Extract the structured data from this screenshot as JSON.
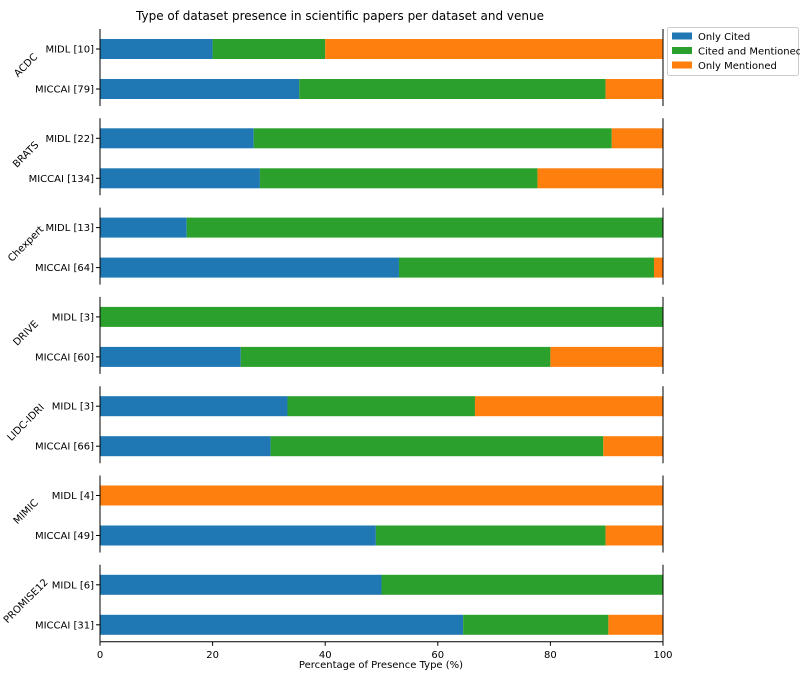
{
  "chart_data": {
    "type": "bar",
    "orientation": "horizontal",
    "stacked": true,
    "title": "Type of dataset presence in scientific papers per dataset and venue",
    "xlabel": "Percentage of Presence Type (%)",
    "xlim": [
      0,
      100
    ],
    "xticks": [
      0,
      20,
      40,
      60,
      80,
      100
    ],
    "grid": false,
    "legend_position": "top-right, outside plot",
    "series": [
      {
        "name": "Only Cited",
        "color": "#1f77b4"
      },
      {
        "name": "Cited and Mentioned",
        "color": "#2ca02c"
      },
      {
        "name": "Only Mentioned",
        "color": "#ff7f0e"
      }
    ],
    "groups": [
      {
        "name": "ACDC",
        "bars": [
          {
            "label": "MIDL [10]",
            "values": [
              20.0,
              20.0,
              60.0
            ]
          },
          {
            "label": "MICCAI [79]",
            "values": [
              35.4,
              54.4,
              10.2
            ]
          }
        ]
      },
      {
        "name": "BRATS",
        "bars": [
          {
            "label": "MIDL [22]",
            "values": [
              27.3,
              63.6,
              9.1
            ]
          },
          {
            "label": "MICCAI [134]",
            "values": [
              28.4,
              49.3,
              22.3
            ]
          }
        ]
      },
      {
        "name": "Chexpert",
        "bars": [
          {
            "label": "MIDL [13]",
            "values": [
              15.4,
              84.6,
              0
            ]
          },
          {
            "label": "MICCAI [64]",
            "values": [
              53.1,
              45.3,
              1.6
            ]
          }
        ]
      },
      {
        "name": "DRIVE",
        "bars": [
          {
            "label": "MIDL [3]",
            "values": [
              0,
              100,
              0
            ]
          },
          {
            "label": "MICCAI [60]",
            "values": [
              25.0,
              55.0,
              20.0
            ]
          }
        ]
      },
      {
        "name": "LIDC-IDRI",
        "bars": [
          {
            "label": "MIDL [3]",
            "values": [
              33.3,
              33.3,
              33.4
            ]
          },
          {
            "label": "MICCAI [66]",
            "values": [
              30.3,
              59.1,
              10.6
            ]
          }
        ]
      },
      {
        "name": "MIMIC",
        "bars": [
          {
            "label": "MIDL [4]",
            "values": [
              0,
              0,
              100
            ]
          },
          {
            "label": "MICCAI [49]",
            "values": [
              49.0,
              40.8,
              10.2
            ]
          }
        ]
      },
      {
        "name": "PROMISE12",
        "bars": [
          {
            "label": "MIDL [6]",
            "values": [
              50.0,
              50.0,
              0
            ]
          },
          {
            "label": "MICCAI [31]",
            "values": [
              64.5,
              25.8,
              9.7
            ]
          }
        ]
      }
    ]
  }
}
